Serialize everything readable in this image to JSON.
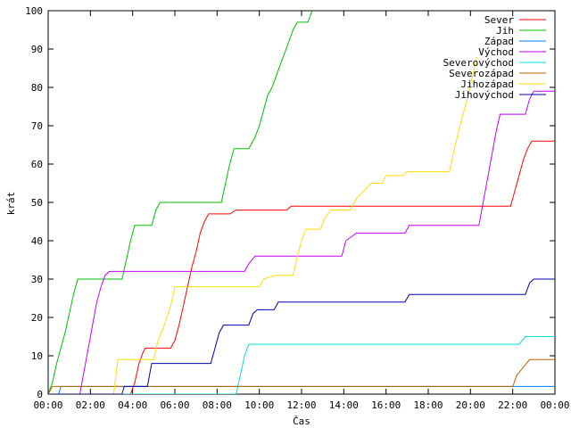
{
  "chart_data": {
    "type": "line",
    "title": "",
    "xlabel": "Čas",
    "ylabel": "krát",
    "xlim": [
      0,
      24
    ],
    "ylim": [
      0,
      100
    ],
    "x_ticks": [
      "00:00",
      "02:00",
      "04:00",
      "06:00",
      "08:00",
      "10:00",
      "12:00",
      "14:00",
      "16:00",
      "18:00",
      "20:00",
      "22:00",
      "00:00"
    ],
    "y_ticks": [
      0,
      10,
      20,
      30,
      40,
      50,
      60,
      70,
      80,
      90,
      100
    ],
    "legend_position": "top-right",
    "series": [
      {
        "name": "Sever",
        "color": "#ff0000",
        "points": [
          [
            0,
            0
          ],
          [
            3.9,
            0
          ],
          [
            4.1,
            3
          ],
          [
            4.3,
            8
          ],
          [
            4.5,
            11
          ],
          [
            4.6,
            12
          ],
          [
            5.8,
            12
          ],
          [
            6.0,
            14
          ],
          [
            6.2,
            18
          ],
          [
            6.4,
            23
          ],
          [
            6.6,
            28
          ],
          [
            6.8,
            33
          ],
          [
            7.0,
            37
          ],
          [
            7.2,
            42
          ],
          [
            7.4,
            45
          ],
          [
            7.6,
            47
          ],
          [
            8.6,
            47
          ],
          [
            8.9,
            48
          ],
          [
            11.3,
            48
          ],
          [
            11.5,
            49
          ],
          [
            21.9,
            49
          ],
          [
            22.1,
            53
          ],
          [
            22.3,
            57
          ],
          [
            22.5,
            61
          ],
          [
            22.7,
            64
          ],
          [
            22.9,
            66
          ],
          [
            24,
            66
          ]
        ]
      },
      {
        "name": "Jih",
        "color": "#00c000",
        "points": [
          [
            0,
            0
          ],
          [
            0.2,
            3
          ],
          [
            0.4,
            8
          ],
          [
            0.6,
            12
          ],
          [
            0.8,
            16
          ],
          [
            1.0,
            21
          ],
          [
            1.2,
            26
          ],
          [
            1.4,
            30
          ],
          [
            3.5,
            30
          ],
          [
            3.7,
            35
          ],
          [
            3.9,
            40
          ],
          [
            4.1,
            44
          ],
          [
            4.9,
            44
          ],
          [
            5.1,
            48
          ],
          [
            5.3,
            50
          ],
          [
            8.2,
            50
          ],
          [
            8.4,
            55
          ],
          [
            8.6,
            60
          ],
          [
            8.8,
            64
          ],
          [
            9.5,
            64
          ],
          [
            9.8,
            67
          ],
          [
            10.0,
            70
          ],
          [
            10.2,
            74
          ],
          [
            10.4,
            78
          ],
          [
            10.6,
            80
          ],
          [
            10.8,
            83
          ],
          [
            11.0,
            86
          ],
          [
            11.2,
            89
          ],
          [
            11.4,
            92
          ],
          [
            11.6,
            95
          ],
          [
            11.8,
            97
          ],
          [
            12.3,
            97
          ],
          [
            12.5,
            100
          ]
        ]
      },
      {
        "name": "Západ",
        "color": "#0080ff",
        "points": [
          [
            0,
            0
          ],
          [
            0.5,
            0
          ],
          [
            0.6,
            2
          ],
          [
            24,
            2
          ]
        ]
      },
      {
        "name": "Východ",
        "color": "#c000ff",
        "points": [
          [
            0,
            0
          ],
          [
            1.5,
            0
          ],
          [
            1.7,
            6
          ],
          [
            1.9,
            12
          ],
          [
            2.1,
            18
          ],
          [
            2.3,
            24
          ],
          [
            2.5,
            28
          ],
          [
            2.7,
            31
          ],
          [
            2.9,
            32
          ],
          [
            9.3,
            32
          ],
          [
            9.5,
            34
          ],
          [
            9.8,
            36
          ],
          [
            13.9,
            36
          ],
          [
            14.1,
            40
          ],
          [
            14.6,
            42
          ],
          [
            16.9,
            42
          ],
          [
            17.1,
            44
          ],
          [
            20.4,
            44
          ],
          [
            20.6,
            50
          ],
          [
            20.8,
            56
          ],
          [
            21.0,
            62
          ],
          [
            21.2,
            68
          ],
          [
            21.4,
            73
          ],
          [
            22.6,
            73
          ],
          [
            22.8,
            77
          ],
          [
            23.0,
            79
          ],
          [
            24,
            79
          ]
        ]
      },
      {
        "name": "Severovýchod",
        "color": "#00e0e0",
        "points": [
          [
            0,
            0
          ],
          [
            8.9,
            0
          ],
          [
            9.1,
            5
          ],
          [
            9.3,
            10
          ],
          [
            9.5,
            13
          ],
          [
            22.3,
            13
          ],
          [
            22.6,
            15
          ],
          [
            24,
            15
          ]
        ]
      },
      {
        "name": "Severozápad",
        "color": "#c06000",
        "points": [
          [
            0,
            0
          ],
          [
            0.2,
            2
          ],
          [
            22.0,
            2
          ],
          [
            22.2,
            5
          ],
          [
            22.5,
            7
          ],
          [
            22.8,
            9
          ],
          [
            24,
            9
          ]
        ]
      },
      {
        "name": "Jihozápad",
        "color": "#ffdd00",
        "points": [
          [
            0,
            0
          ],
          [
            3.1,
            0
          ],
          [
            3.3,
            9
          ],
          [
            5.0,
            9
          ],
          [
            5.2,
            14
          ],
          [
            5.5,
            18
          ],
          [
            5.8,
            23
          ],
          [
            6.0,
            28
          ],
          [
            10.0,
            28
          ],
          [
            10.2,
            30
          ],
          [
            10.8,
            31
          ],
          [
            11.6,
            31
          ],
          [
            11.8,
            36
          ],
          [
            12.0,
            40
          ],
          [
            12.2,
            43
          ],
          [
            12.9,
            43
          ],
          [
            13.1,
            46
          ],
          [
            13.4,
            48
          ],
          [
            14.3,
            48
          ],
          [
            14.6,
            51
          ],
          [
            15.3,
            55
          ],
          [
            15.8,
            55
          ],
          [
            16.0,
            57
          ],
          [
            16.8,
            57
          ],
          [
            17.0,
            58
          ],
          [
            19.0,
            58
          ],
          [
            19.2,
            63
          ],
          [
            19.5,
            70
          ],
          [
            19.8,
            76
          ],
          [
            20.1,
            83
          ],
          [
            20.3,
            88
          ]
        ]
      },
      {
        "name": "Jihovýchod",
        "color": "#0000b0",
        "points": [
          [
            0,
            0
          ],
          [
            3.5,
            0
          ],
          [
            3.6,
            2
          ],
          [
            4.7,
            2
          ],
          [
            4.9,
            8
          ],
          [
            7.7,
            8
          ],
          [
            7.9,
            12
          ],
          [
            8.1,
            16
          ],
          [
            8.3,
            18
          ],
          [
            9.5,
            18
          ],
          [
            9.7,
            21
          ],
          [
            9.9,
            22
          ],
          [
            10.7,
            22
          ],
          [
            10.9,
            24
          ],
          [
            16.9,
            24
          ],
          [
            17.1,
            26
          ],
          [
            22.6,
            26
          ],
          [
            22.8,
            29
          ],
          [
            23.0,
            30
          ],
          [
            24,
            30
          ]
        ]
      }
    ]
  }
}
